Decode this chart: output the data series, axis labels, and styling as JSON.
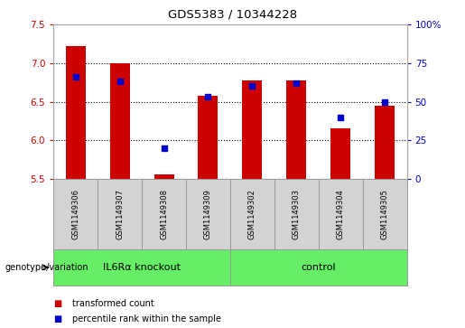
{
  "title": "GDS5383 / 10344228",
  "samples": [
    "GSM1149306",
    "GSM1149307",
    "GSM1149308",
    "GSM1149309",
    "GSM1149302",
    "GSM1149303",
    "GSM1149304",
    "GSM1149305"
  ],
  "transformed_counts": [
    7.22,
    7.0,
    5.56,
    6.58,
    6.78,
    6.78,
    6.15,
    6.45
  ],
  "percentile_ranks": [
    66,
    63,
    20,
    53,
    60,
    62,
    40,
    50
  ],
  "ylim_left": [
    5.5,
    7.5
  ],
  "ylim_right": [
    0,
    100
  ],
  "yticks_left": [
    5.5,
    6.0,
    6.5,
    7.0,
    7.5
  ],
  "yticks_right": [
    0,
    25,
    50,
    75,
    100
  ],
  "ytick_labels_right": [
    "0",
    "25",
    "50",
    "75",
    "100%"
  ],
  "bar_color": "#cc0000",
  "dot_color": "#0000cc",
  "bar_bottom": 5.5,
  "groups": [
    {
      "label": "IL6Rα knockout",
      "span": 4,
      "color": "#66ee66"
    },
    {
      "label": "control",
      "span": 4,
      "color": "#66ee66"
    }
  ],
  "genotype_label": "genotype/variation",
  "legend_items": [
    {
      "label": "transformed count",
      "color": "#cc0000"
    },
    {
      "label": "percentile rank within the sample",
      "color": "#0000cc"
    }
  ],
  "tick_label_color_left": "#cc0000",
  "tick_label_color_right": "#0000cc",
  "bar_width": 0.45,
  "table_bg_color": "#d3d3d3",
  "table_border_color": "#999999",
  "grid_yticks": [
    6.0,
    6.5,
    7.0
  ]
}
